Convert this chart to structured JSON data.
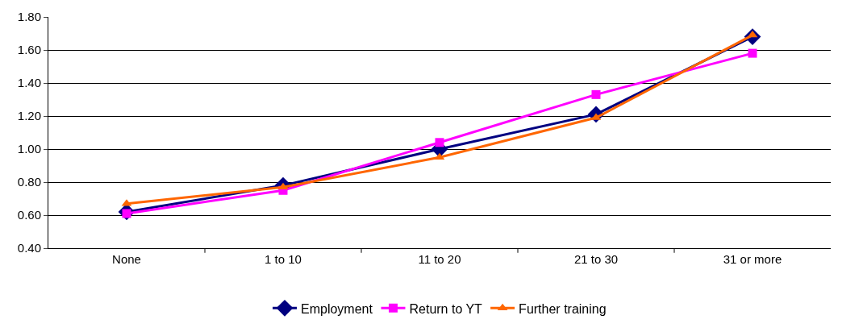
{
  "chart_data": {
    "type": "line",
    "categories": [
      "None",
      "1 to 10",
      "11 to 20",
      "21 to 30",
      "31 or more"
    ],
    "series": [
      {
        "name": "Employment",
        "color": "#000080",
        "marker": "diamond",
        "values": [
          0.62,
          0.78,
          1.0,
          1.21,
          1.68
        ]
      },
      {
        "name": "Return to YT",
        "color": "#ff00ff",
        "marker": "square",
        "values": [
          0.61,
          0.75,
          1.04,
          1.33,
          1.58
        ]
      },
      {
        "name": "Further training",
        "color": "#ff6600",
        "marker": "triangle",
        "values": [
          0.67,
          0.77,
          0.95,
          1.19,
          1.69
        ]
      }
    ],
    "ylim": [
      0.4,
      1.8
    ],
    "yticks": [
      {
        "value": 0.4,
        "label": "0.40"
      },
      {
        "value": 0.6,
        "label": "0.60"
      },
      {
        "value": 0.8,
        "label": "0.80"
      },
      {
        "value": 1.0,
        "label": "1.00"
      },
      {
        "value": 1.2,
        "label": "1.20"
      },
      {
        "value": 1.4,
        "label": "1.40"
      },
      {
        "value": 1.6,
        "label": "1.60"
      },
      {
        "value": 1.8,
        "label": "1.80"
      }
    ],
    "grid": "y",
    "legend": "bottom",
    "line_style": "solid"
  }
}
